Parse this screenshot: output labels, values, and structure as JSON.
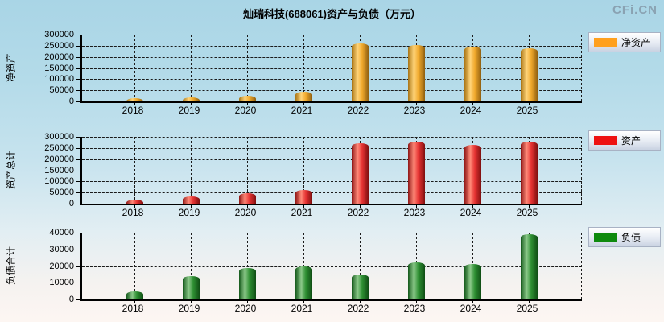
{
  "page": {
    "title": "灿瑞科技(688061)资产与负债（万元）",
    "logo": "CFi.CN"
  },
  "chart_data": [
    {
      "type": "bar",
      "title": "净资产",
      "ylabel": "净资产",
      "legend": "净资产",
      "legend_color": "#FFA01E",
      "bar_shades": [
        "#a87414",
        "#ffd47a",
        "#f0a92c",
        "#8f5f10"
      ],
      "categories": [
        "2018",
        "2019",
        "2020",
        "2021",
        "2022",
        "2023",
        "2024",
        "2025"
      ],
      "values": [
        13000,
        18000,
        27000,
        42000,
        259000,
        253000,
        246000,
        240000
      ],
      "ylim": [
        0,
        300000
      ],
      "yticks": [
        0,
        50000,
        100000,
        150000,
        200000,
        250000,
        300000
      ],
      "grid": true,
      "legend_position": "right"
    },
    {
      "type": "bar",
      "title": "资产",
      "ylabel": "资产总计",
      "legend": "资产",
      "legend_color": "#EE1111",
      "bar_shades": [
        "#8f1616",
        "#ff8a78",
        "#e63232",
        "#7e0f0f"
      ],
      "categories": [
        "2018",
        "2019",
        "2020",
        "2021",
        "2022",
        "2023",
        "2024",
        "2025"
      ],
      "values": [
        18000,
        32000,
        46000,
        62000,
        271000,
        280000,
        265000,
        277000
      ],
      "ylim": [
        0,
        300000
      ],
      "yticks": [
        0,
        50000,
        100000,
        150000,
        200000,
        250000,
        300000
      ],
      "grid": true,
      "legend_position": "right"
    },
    {
      "type": "bar",
      "title": "负债",
      "ylabel": "负债合计",
      "legend": "负债",
      "legend_color": "#0E8A0E",
      "bar_shades": [
        "#14591a",
        "#8cc98a",
        "#2e8f32",
        "#0f4d14"
      ],
      "categories": [
        "2018",
        "2019",
        "2020",
        "2021",
        "2022",
        "2023",
        "2024",
        "2025"
      ],
      "values": [
        5000,
        14000,
        19000,
        20000,
        15000,
        22000,
        21000,
        39000
      ],
      "ylim": [
        0,
        40000
      ],
      "yticks": [
        0,
        10000,
        20000,
        30000,
        40000
      ],
      "grid": true,
      "legend_position": "right"
    }
  ]
}
